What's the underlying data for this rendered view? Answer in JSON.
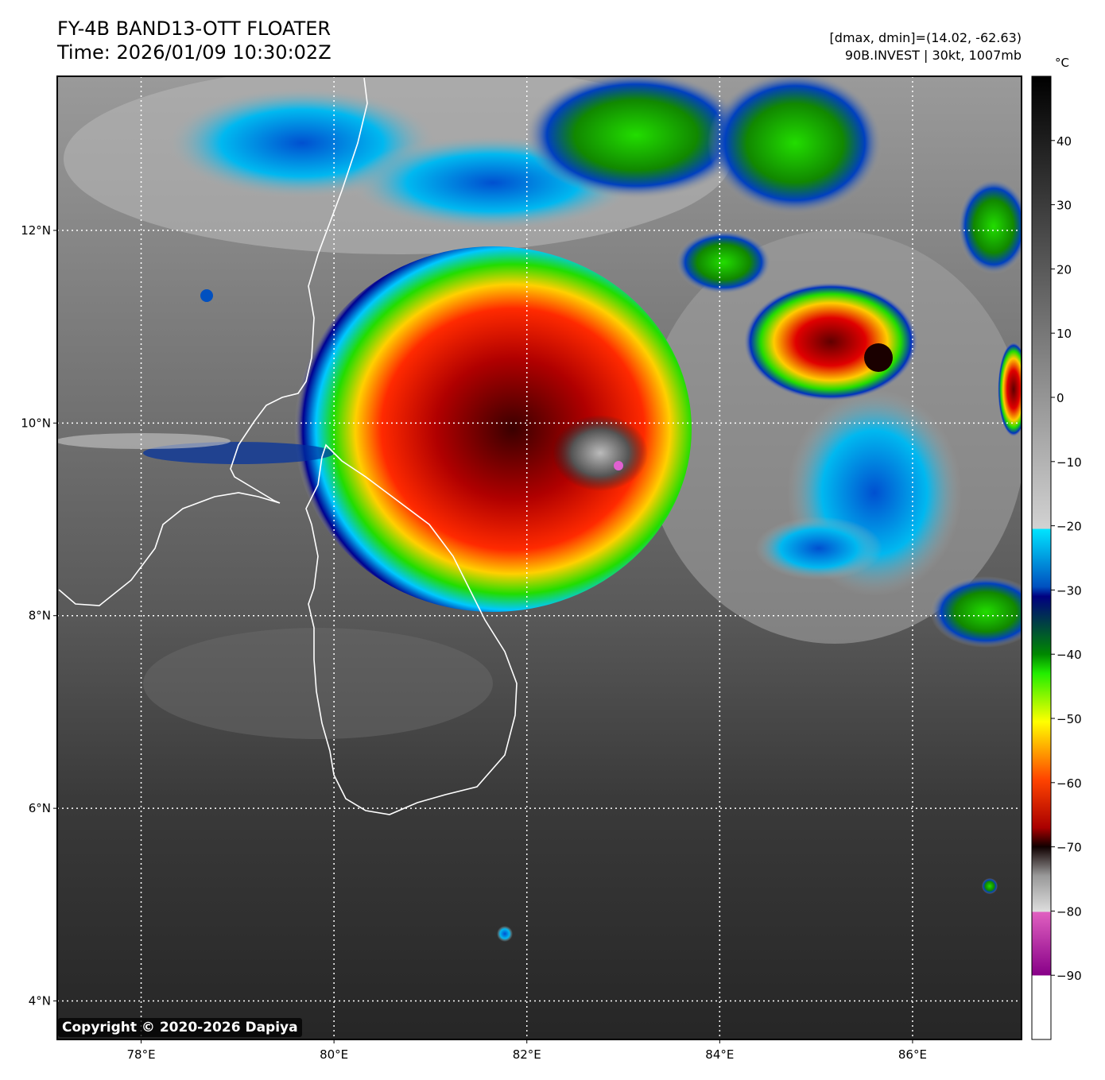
{
  "header": {
    "title_line1": "FY-4B BAND13-OTT FLOATER",
    "title_line2": "Time: 2026/01/09 10:30:02Z",
    "info_line1": "[dmax, dmin]=(14.02, -62.63)",
    "info_line2": "90B.INVEST | 30kt, 1007mb"
  },
  "map": {
    "lon_range": [
      77.13,
      87.13
    ],
    "lat_range": [
      3.6,
      13.6
    ],
    "lon_ticks": [
      {
        "value": 78,
        "label": "78°E"
      },
      {
        "value": 80,
        "label": "80°E"
      },
      {
        "value": 82,
        "label": "82°E"
      },
      {
        "value": 84,
        "label": "84°E"
      },
      {
        "value": 86,
        "label": "86°E"
      }
    ],
    "lat_ticks": [
      {
        "value": 4,
        "label": "4°N"
      },
      {
        "value": 6,
        "label": "6°N"
      },
      {
        "value": 8,
        "label": "8°N"
      },
      {
        "value": 10,
        "label": "10°N"
      },
      {
        "value": 12,
        "label": "12°N"
      }
    ],
    "storm_center": {
      "lon": 82.9,
      "lat": 9.55
    }
  },
  "colorbar": {
    "unit": "°C",
    "range": [
      -100,
      50
    ],
    "ticks": [
      {
        "value": 40,
        "label": "40"
      },
      {
        "value": 30,
        "label": "30"
      },
      {
        "value": 20,
        "label": "20"
      },
      {
        "value": 10,
        "label": "10"
      },
      {
        "value": 0,
        "label": "0"
      },
      {
        "value": -10,
        "label": "−10"
      },
      {
        "value": -20,
        "label": "−20"
      },
      {
        "value": -30,
        "label": "−30"
      },
      {
        "value": -40,
        "label": "−40"
      },
      {
        "value": -50,
        "label": "−50"
      },
      {
        "value": -60,
        "label": "−60"
      },
      {
        "value": -70,
        "label": "−70"
      },
      {
        "value": -80,
        "label": "−80"
      },
      {
        "value": -90,
        "label": "−90"
      }
    ]
  },
  "copyright": "Copyright © 2020-2026 Dapiya"
}
